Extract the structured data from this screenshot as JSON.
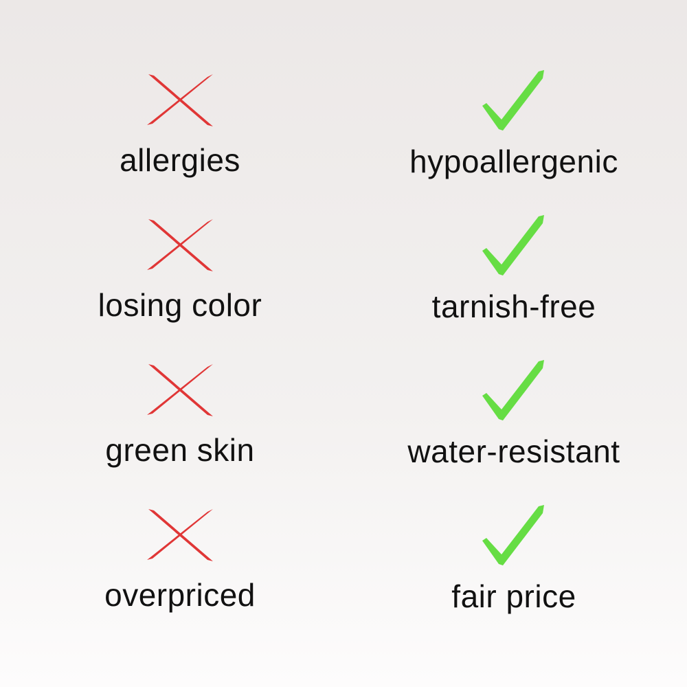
{
  "colors": {
    "cross": "#e03636",
    "check": "#66dd44",
    "text": "#111111"
  },
  "rows": [
    {
      "bad": {
        "icon": "cross-icon",
        "label": "allergies"
      },
      "good": {
        "icon": "check-icon",
        "label": "hypoallergenic"
      }
    },
    {
      "bad": {
        "icon": "cross-icon",
        "label": "losing color"
      },
      "good": {
        "icon": "check-icon",
        "label": "tarnish-free"
      }
    },
    {
      "bad": {
        "icon": "cross-icon",
        "label": "green skin"
      },
      "good": {
        "icon": "check-icon",
        "label": "water-resistant"
      }
    },
    {
      "bad": {
        "icon": "cross-icon",
        "label": "overpriced"
      },
      "good": {
        "icon": "check-icon",
        "label": "fair price"
      }
    }
  ]
}
